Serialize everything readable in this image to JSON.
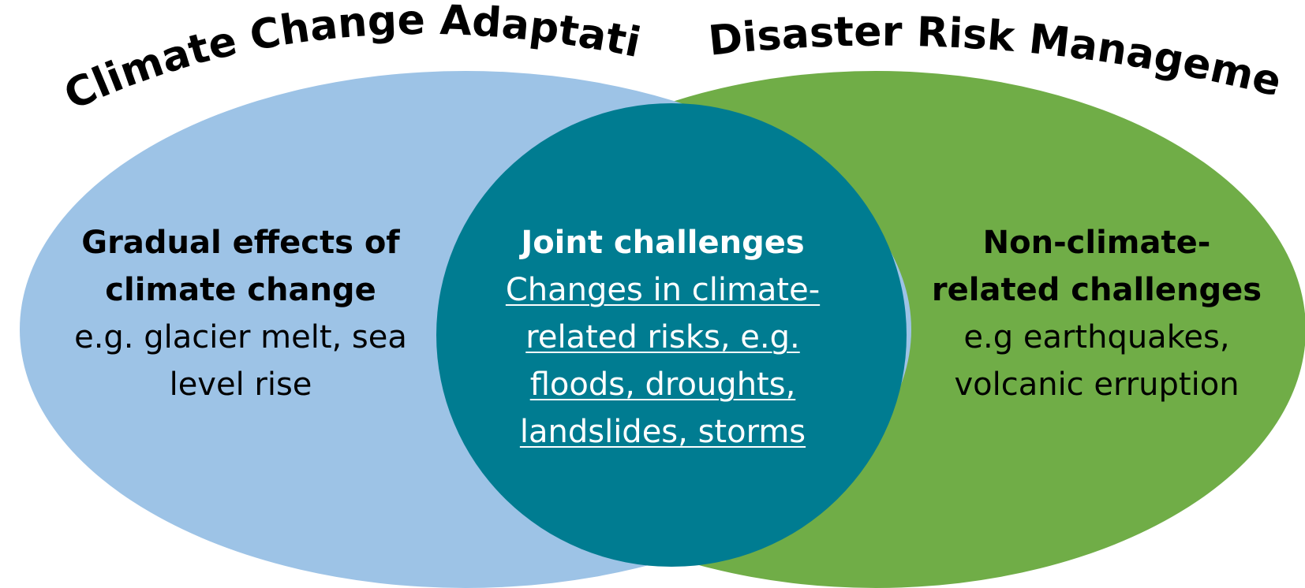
{
  "titles": {
    "left": "Climate Change Adaptation",
    "right": "Disaster Risk Management"
  },
  "regions": {
    "left": {
      "heading_lines": [
        "Gradual effects of",
        "climate change"
      ],
      "body_lines": [
        "e.g. glacier melt, sea",
        "level rise"
      ]
    },
    "center": {
      "heading_lines": [
        "Joint challenges"
      ],
      "body_lines": [
        "Changes in climate-",
        "related risks, e.g.",
        "floods, droughts,",
        "landslides, storms"
      ]
    },
    "right": {
      "heading_lines": [
        "Non-climate-",
        "related challenges"
      ],
      "body_lines": [
        "e.g earthquakes,",
        "volcanic erruption"
      ]
    }
  },
  "colors": {
    "left_ellipse": "#9DC3E6",
    "right_ellipse": "#70AD47",
    "overlap_circle": "#007C91",
    "title_text": "#000000",
    "center_text": "#FFFFFF"
  }
}
